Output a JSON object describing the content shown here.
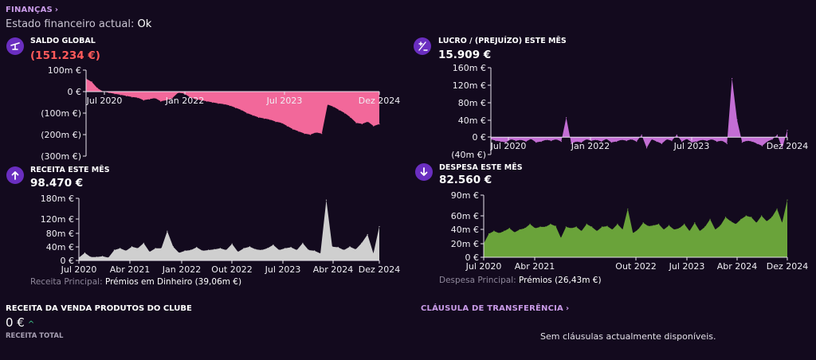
{
  "header": {
    "section_label": "FINANÇAS",
    "status_label": "Estado financeiro actual:",
    "status_value": "Ok"
  },
  "icons": {
    "saldo": "scale-icon",
    "lucro": "plus-minus-icon",
    "receita": "arrow-up-icon",
    "despesa": "arrow-down-icon"
  },
  "saldo": {
    "title": "SALDO GLOBAL",
    "value": "(151.234 €)",
    "color": "#f2689a",
    "y_ticks": [
      "100m €",
      "0 €",
      "(100m €)",
      "(200m €)",
      "(300m €)"
    ],
    "x_ticks": [
      "Jul 2020",
      "Jan 2022",
      "Jul 2023",
      "Dez 2024"
    ]
  },
  "lucro": {
    "title": "LUCRO / (PREJUÍZO) ESTE MÊS",
    "value": "15.909 €",
    "color": "#c36ed4",
    "y_ticks": [
      "160m €",
      "120m €",
      "80m €",
      "40m €",
      "0 €",
      "(40m €)"
    ],
    "x_ticks": [
      "Jul 2020",
      "Jan 2022",
      "Jul 2023",
      "Dez 2024"
    ]
  },
  "receita": {
    "title": "RECEITA ESTE MÊS",
    "value": "98.470 €",
    "color": "#cfcfcf",
    "y_ticks": [
      "180m €",
      "120m €",
      "80m €",
      "40m €",
      "0 €"
    ],
    "x_ticks": [
      "Jul 2020",
      "Abr 2021",
      "Jan 2022",
      "Out 2022",
      "Jul 2023",
      "Abr 2024",
      "Dez 2024"
    ],
    "main_label": "Receita Principal:",
    "main_value": "Prémios em Dinheiro (39,06m €)"
  },
  "despesa": {
    "title": "DESPESA ESTE MÊS",
    "value": "82.560 €",
    "color": "#6aa33a",
    "y_ticks": [
      "90m €",
      "60m €",
      "40m €",
      "20m €",
      "0 €"
    ],
    "x_ticks": [
      "Jul 2020",
      "Abr 2021",
      "Out 2022",
      "Jul 2023",
      "Abr 2024",
      "Dez 2024"
    ],
    "main_label": "Despesa Principal:",
    "main_value": "Prémios (26,43m €)"
  },
  "merch": {
    "title": "RECEITA DA VENDA PRODUTOS DO CLUBE",
    "value": "0 €",
    "trend": "^",
    "caption": "RECEITA TOTAL"
  },
  "transfer": {
    "title": "CLÁUSULA DE TRANSFERÊNCIA",
    "empty": "Sem cláusulas actualmente disponíveis."
  },
  "chart_data": [
    {
      "type": "area",
      "name_ref": "saldo",
      "ylim": [
        -300,
        100
      ],
      "y_unit": "m €",
      "x_range": [
        "Jul 2020",
        "Dez 2024"
      ],
      "values": [
        60,
        45,
        15,
        0,
        -5,
        -10,
        -15,
        -20,
        -25,
        -28,
        -40,
        -35,
        -30,
        -45,
        -40,
        -30,
        -5,
        -8,
        -25,
        -35,
        -40,
        -45,
        -50,
        -55,
        -58,
        -65,
        -75,
        -85,
        -100,
        -110,
        -120,
        -125,
        -130,
        -140,
        -145,
        -160,
        -175,
        -185,
        -195,
        -200,
        -190,
        -195,
        -60,
        -70,
        -85,
        -100,
        -120,
        -145,
        -150,
        -140,
        -160,
        -151
      ]
    },
    {
      "type": "area",
      "name_ref": "lucro",
      "ylim": [
        -40,
        160
      ],
      "y_unit": "m €",
      "x_range": [
        "Jul 2020",
        "Dez 2024"
      ],
      "values": [
        -5,
        -8,
        -10,
        -12,
        -5,
        -8,
        -6,
        -10,
        -4,
        -12,
        -10,
        -6,
        -8,
        -5,
        -10,
        45,
        -15,
        -10,
        -12,
        -5,
        -8,
        -6,
        -10,
        -4,
        -12,
        -10,
        -6,
        -8,
        -5,
        -10,
        5,
        -25,
        -5,
        -10,
        -15,
        -5,
        -8,
        5,
        -10,
        -4,
        -12,
        -10,
        -6,
        -8,
        -5,
        -10,
        -8,
        -15,
        135,
        40,
        -12,
        -8,
        -10,
        -15,
        -20,
        -10,
        -5,
        5,
        -25,
        16
      ]
    },
    {
      "type": "area",
      "name_ref": "receita",
      "ylim": [
        0,
        180
      ],
      "y_unit": "m €",
      "x_range": [
        "Jul 2020",
        "Dez 2024"
      ],
      "values": [
        8,
        22,
        10,
        10,
        12,
        8,
        30,
        35,
        28,
        40,
        35,
        50,
        25,
        35,
        35,
        85,
        40,
        22,
        28,
        30,
        38,
        28,
        30,
        32,
        35,
        30,
        48,
        25,
        35,
        40,
        32,
        30,
        35,
        45,
        30,
        35,
        38,
        30,
        50,
        30,
        28,
        20,
        175,
        40,
        38,
        30,
        40,
        32,
        50,
        75,
        20,
        98
      ]
    },
    {
      "type": "area",
      "name_ref": "despesa",
      "ylim": [
        0,
        90
      ],
      "y_unit": "m €",
      "x_range": [
        "Jul 2020",
        "Dez 2024"
      ],
      "values": [
        20,
        34,
        38,
        35,
        38,
        42,
        36,
        40,
        42,
        48,
        42,
        44,
        44,
        48,
        45,
        28,
        44,
        42,
        44,
        38,
        48,
        44,
        38,
        44,
        45,
        40,
        48,
        40,
        70,
        35,
        40,
        50,
        45,
        46,
        48,
        40,
        46,
        40,
        42,
        48,
        38,
        50,
        38,
        44,
        55,
        40,
        46,
        58,
        52,
        48,
        55,
        60,
        58,
        50,
        60,
        52,
        58,
        70,
        50,
        83
      ]
    }
  ]
}
